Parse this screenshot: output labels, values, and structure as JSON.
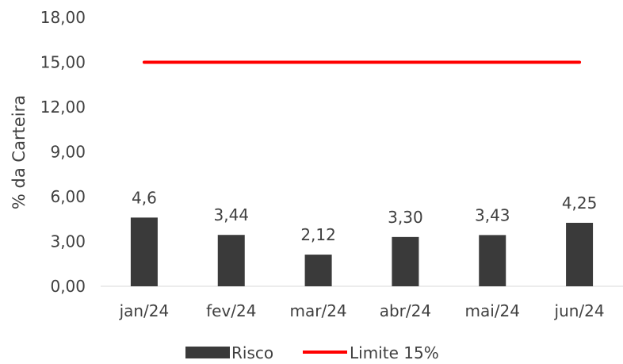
{
  "chart_data": {
    "type": "bar",
    "categories": [
      "jan/24",
      "fev/24",
      "mar/24",
      "abr/24",
      "mai/24",
      "jun/24"
    ],
    "series": [
      {
        "name": "Risco",
        "type": "bar",
        "values": [
          4.6,
          3.44,
          2.12,
          3.3,
          3.43,
          4.25
        ],
        "data_labels": [
          "4,6",
          "3,44",
          "2,12",
          "3,30",
          "3,43",
          "4,25"
        ],
        "color": "#3a3a3a"
      },
      {
        "name": "Limite 15%",
        "type": "line",
        "values": [
          15,
          15,
          15,
          15,
          15,
          15
        ],
        "color": "#ff0000"
      }
    ],
    "ylabel": "% da Carteira",
    "xlabel": "",
    "ylim": [
      0,
      18
    ],
    "yticks": [
      "0,00",
      "3,00",
      "6,00",
      "9,00",
      "12,00",
      "15,00",
      "18,00"
    ],
    "grid": false,
    "legend_position": "bottom"
  }
}
